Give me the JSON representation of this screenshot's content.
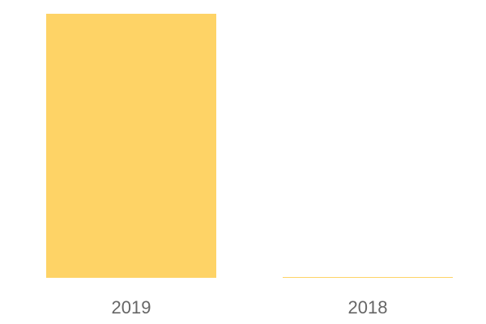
{
  "chart_data": {
    "type": "bar",
    "title": "",
    "xlabel": "",
    "ylabel": "",
    "categories": [
      "2019",
      "2018"
    ],
    "values": [
      100,
      0.3
    ],
    "ylim": [
      0,
      100
    ],
    "grid": false,
    "bar_color": "#FED366",
    "tick_label_color": "#666666"
  }
}
